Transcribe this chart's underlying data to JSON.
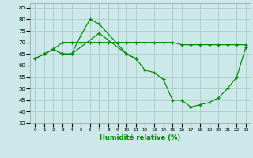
{
  "xlabel": "Humidité relative (%)",
  "background_color": "#cce8e8",
  "grid_color": "#aacccc",
  "line_color": "#008800",
  "x_ticks": [
    0,
    1,
    2,
    3,
    4,
    5,
    6,
    7,
    8,
    9,
    10,
    11,
    12,
    13,
    14,
    15,
    16,
    17,
    18,
    19,
    20,
    21,
    22,
    23
  ],
  "xlim": [
    -0.5,
    23.5
  ],
  "ylim": [
    35,
    87
  ],
  "y_ticks": [
    35,
    40,
    45,
    50,
    55,
    60,
    65,
    70,
    75,
    80,
    85
  ],
  "line1_x": [
    0,
    1,
    2,
    3,
    4,
    5,
    6,
    7,
    10,
    11,
    12,
    13,
    14,
    15,
    16,
    17,
    18,
    19,
    20,
    21,
    22,
    23
  ],
  "line1_y": [
    63,
    65,
    67,
    65,
    65,
    73,
    80,
    78,
    65,
    63,
    58,
    57,
    54,
    45,
    45,
    42,
    43,
    44,
    46,
    50,
    55,
    68
  ],
  "line2_x": [
    0,
    1,
    2,
    3,
    4,
    7,
    10,
    11
  ],
  "line2_y": [
    63,
    65,
    67,
    65,
    65,
    74,
    65,
    63
  ],
  "line3_x": [
    2,
    3,
    4,
    5,
    6,
    7,
    8,
    9,
    10,
    11,
    12,
    13,
    14,
    15,
    16,
    17,
    18,
    19,
    20,
    21,
    22,
    23
  ],
  "line3_y": [
    67,
    70,
    70,
    70,
    70,
    70,
    70,
    70,
    70,
    70,
    70,
    70,
    70,
    70,
    69,
    69,
    69,
    69,
    69,
    69,
    69,
    69
  ]
}
